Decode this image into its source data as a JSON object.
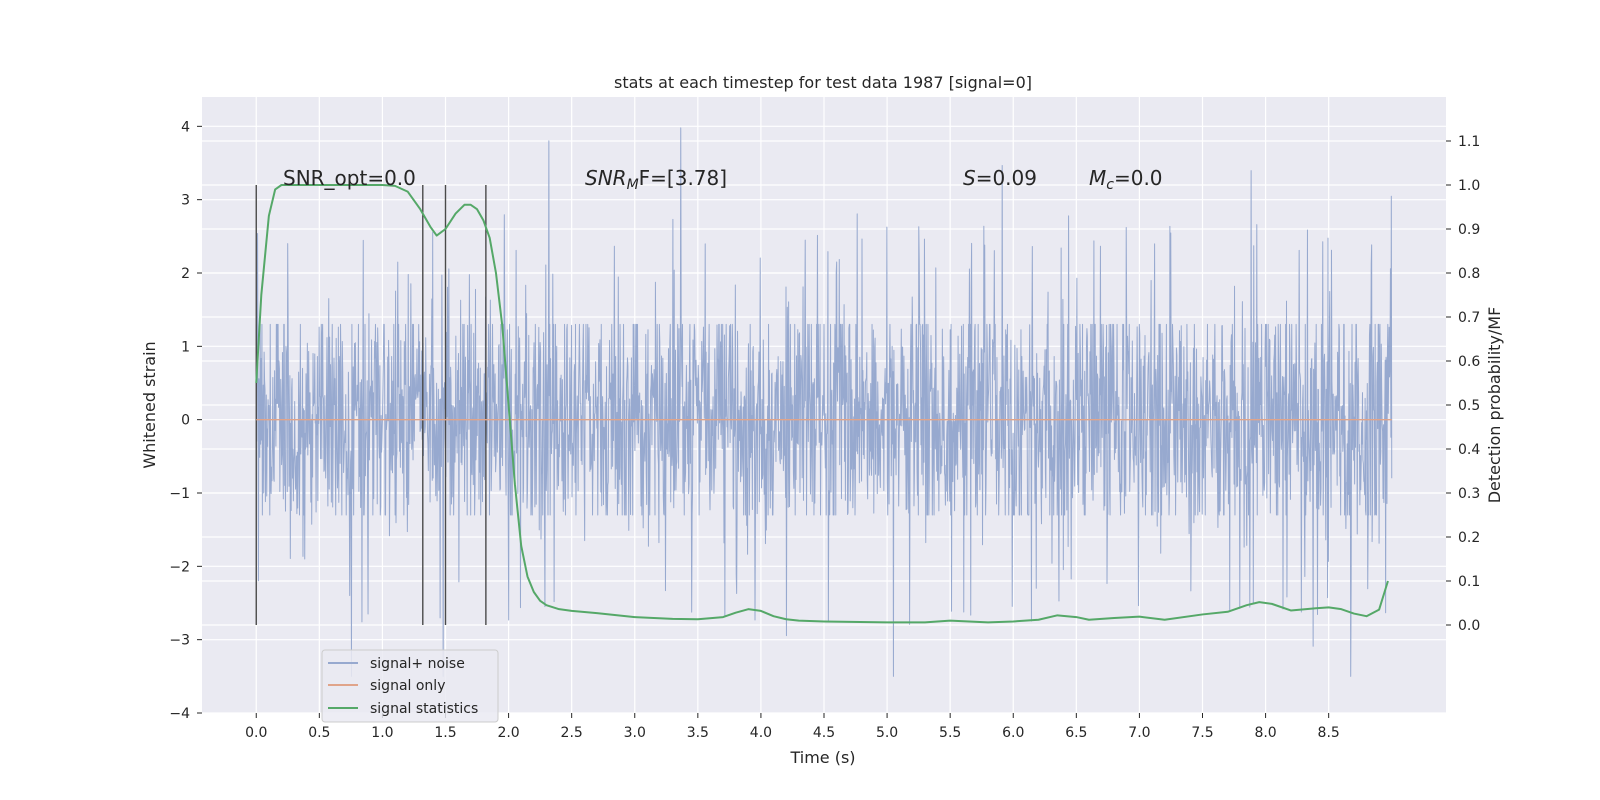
{
  "chart_data": {
    "type": "line",
    "title": "stats at each timestep for test data 1987 [signal=0]",
    "xlabel": "Time (s)",
    "ylabel_left": "Whitened strain",
    "ylabel_right": "Detection probability/MF",
    "xlim": [
      -0.43,
      9.43
    ],
    "ylim_left": [
      -4,
      4.4
    ],
    "ylim_right": [
      -0.2,
      1.2
    ],
    "x_ticks": [
      "0.0",
      "0.5",
      "1.0",
      "1.5",
      "2.0",
      "2.5",
      "3.0",
      "3.5",
      "4.0",
      "4.5",
      "5.0",
      "5.5",
      "6.0",
      "6.5",
      "7.0",
      "7.5",
      "8.0",
      "8.5"
    ],
    "y_ticks_left": [
      "4",
      "3",
      "2",
      "1",
      "0",
      "−1",
      "−2",
      "−3",
      "−4"
    ],
    "y_ticks_right": [
      "1.1",
      "1.0",
      "0.9",
      "0.8",
      "0.7",
      "0.6",
      "0.5",
      "0.4",
      "0.3",
      "0.2",
      "0.1",
      "0.0"
    ],
    "grid": true,
    "legend_position": "lower-left",
    "annotations": {
      "snr_opt": "SNR_opt=0.0",
      "snr_mf_sym": "SNR",
      "snr_mf_sub": "M",
      "snr_mf_rest": "F=[3.78]",
      "s_sym": "S",
      "s_rest": "=0.09",
      "mc_sym": "M",
      "mc_sub": "c",
      "mc_rest": "=0.0"
    },
    "series": [
      {
        "name": "signal+ noise",
        "color": "#97a9cf",
        "envelope": {
          "t_start": 0.0,
          "t_end": 9.0,
          "typical_abs": 1.3,
          "y_max": 4.05,
          "y_min": -3.5
        }
      },
      {
        "name": "signal only",
        "color": "#e0a48a",
        "x": [
          0.0,
          9.0
        ],
        "y": [
          0.0,
          0.0
        ]
      },
      {
        "name": "signal statistics",
        "color": "#55a868",
        "x": [
          0.0,
          0.04,
          0.1,
          0.15,
          0.2,
          0.3,
          0.5,
          0.8,
          1.0,
          1.1,
          1.2,
          1.3,
          1.38,
          1.43,
          1.5,
          1.58,
          1.65,
          1.7,
          1.75,
          1.8,
          1.85,
          1.9,
          1.95,
          2.0,
          2.05,
          2.1,
          2.15,
          2.2,
          2.25,
          2.3,
          2.4,
          2.5,
          2.7,
          3.0,
          3.3,
          3.5,
          3.7,
          3.8,
          3.9,
          4.0,
          4.1,
          4.2,
          4.3,
          4.5,
          5.0,
          5.3,
          5.5,
          5.8,
          6.0,
          6.2,
          6.35,
          6.5,
          6.6,
          6.8,
          7.0,
          7.2,
          7.5,
          7.7,
          7.85,
          7.95,
          8.05,
          8.2,
          8.4,
          8.5,
          8.6,
          8.7,
          8.8,
          8.9,
          8.97
        ],
        "y": [
          0.55,
          0.75,
          0.93,
          0.99,
          1.0,
          1.0,
          1.0,
          1.0,
          1.0,
          0.998,
          0.985,
          0.945,
          0.905,
          0.885,
          0.9,
          0.935,
          0.955,
          0.955,
          0.945,
          0.92,
          0.88,
          0.8,
          0.68,
          0.5,
          0.32,
          0.18,
          0.11,
          0.075,
          0.055,
          0.045,
          0.036,
          0.032,
          0.027,
          0.018,
          0.014,
          0.013,
          0.018,
          0.028,
          0.036,
          0.032,
          0.02,
          0.013,
          0.01,
          0.008,
          0.006,
          0.006,
          0.01,
          0.006,
          0.008,
          0.012,
          0.022,
          0.018,
          0.012,
          0.016,
          0.019,
          0.012,
          0.024,
          0.03,
          0.045,
          0.052,
          0.048,
          0.033,
          0.038,
          0.04,
          0.036,
          0.026,
          0.02,
          0.035,
          0.1
        ]
      }
    ],
    "vertical_markers_x": [
      0.0,
      1.32,
      1.5,
      1.82
    ]
  }
}
